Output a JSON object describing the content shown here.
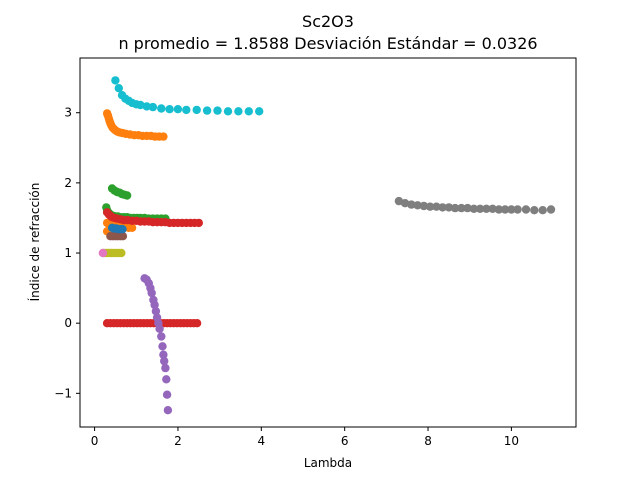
{
  "chart_data": {
    "type": "scatter",
    "title": "Sc2O3",
    "subtitle": "n promedio = 1.8588  Desviación Estándar = 0.0326",
    "xlabel": "Lambda",
    "ylabel": "Índice de refracción",
    "xlim": [
      -0.35,
      11.55
    ],
    "ylim": [
      -1.48,
      3.78
    ],
    "xticks": [
      0,
      2,
      4,
      6,
      8,
      10
    ],
    "yticks": [
      -1,
      0,
      1,
      2,
      3
    ],
    "ytick_labels": [
      "−1",
      "0",
      "1",
      "2",
      "3"
    ],
    "grid": false,
    "series": [
      {
        "color": "#17becf",
        "points": [
          [
            0.5,
            3.46
          ],
          [
            0.58,
            3.35
          ],
          [
            0.66,
            3.25
          ],
          [
            0.74,
            3.2
          ],
          [
            0.82,
            3.17
          ],
          [
            0.9,
            3.14
          ],
          [
            1.0,
            3.12
          ],
          [
            1.1,
            3.11
          ],
          [
            1.25,
            3.09
          ],
          [
            1.4,
            3.08
          ],
          [
            1.6,
            3.06
          ],
          [
            1.8,
            3.05
          ],
          [
            2.0,
            3.05
          ],
          [
            2.2,
            3.04
          ],
          [
            2.45,
            3.04
          ],
          [
            2.7,
            3.03
          ],
          [
            2.95,
            3.03
          ],
          [
            3.2,
            3.02
          ],
          [
            3.45,
            3.02
          ],
          [
            3.7,
            3.02
          ],
          [
            3.95,
            3.02
          ]
        ]
      },
      {
        "color": "#ff7f0e",
        "points": [
          [
            0.3,
            2.99
          ],
          [
            0.32,
            2.96
          ],
          [
            0.34,
            2.92
          ],
          [
            0.36,
            2.88
          ],
          [
            0.38,
            2.85
          ],
          [
            0.4,
            2.82
          ],
          [
            0.43,
            2.79
          ],
          [
            0.46,
            2.77
          ],
          [
            0.5,
            2.75
          ],
          [
            0.55,
            2.73
          ],
          [
            0.6,
            2.72
          ],
          [
            0.67,
            2.71
          ],
          [
            0.75,
            2.7
          ],
          [
            0.85,
            2.69
          ],
          [
            0.95,
            2.68
          ],
          [
            1.05,
            2.68
          ],
          [
            1.15,
            2.67
          ],
          [
            1.25,
            2.67
          ],
          [
            1.35,
            2.67
          ],
          [
            1.45,
            2.66
          ],
          [
            1.55,
            2.66
          ],
          [
            1.65,
            2.66
          ],
          [
            0.3,
            1.43
          ],
          [
            0.35,
            1.41
          ],
          [
            0.42,
            1.4
          ],
          [
            0.5,
            1.39
          ],
          [
            0.58,
            1.38
          ],
          [
            0.66,
            1.37
          ],
          [
            0.74,
            1.37
          ],
          [
            0.82,
            1.36
          ],
          [
            0.9,
            1.36
          ],
          [
            0.3,
            1.31
          ],
          [
            0.35,
            1.3
          ],
          [
            0.4,
            1.3
          ],
          [
            0.45,
            1.29
          ]
        ]
      },
      {
        "color": "#2ca02c",
        "points": [
          [
            0.42,
            1.92
          ],
          [
            0.48,
            1.89
          ],
          [
            0.54,
            1.87
          ],
          [
            0.6,
            1.86
          ],
          [
            0.66,
            1.84
          ],
          [
            0.72,
            1.83
          ],
          [
            0.78,
            1.82
          ],
          [
            0.28,
            1.65
          ],
          [
            0.3,
            1.61
          ],
          [
            0.33,
            1.58
          ],
          [
            0.36,
            1.56
          ],
          [
            0.4,
            1.54
          ],
          [
            0.45,
            1.53
          ],
          [
            0.5,
            1.52
          ],
          [
            0.56,
            1.52
          ],
          [
            0.62,
            1.51
          ],
          [
            0.7,
            1.51
          ],
          [
            0.78,
            1.51
          ],
          [
            0.86,
            1.5
          ],
          [
            0.94,
            1.5
          ],
          [
            1.02,
            1.5
          ],
          [
            1.1,
            1.5
          ],
          [
            1.2,
            1.5
          ],
          [
            1.3,
            1.49
          ],
          [
            1.4,
            1.49
          ],
          [
            1.5,
            1.49
          ],
          [
            1.6,
            1.49
          ],
          [
            1.7,
            1.49
          ]
        ]
      },
      {
        "color": "#d62728",
        "points": [
          [
            0.3,
            1.58
          ],
          [
            0.34,
            1.55
          ],
          [
            0.38,
            1.53
          ],
          [
            0.42,
            1.51
          ],
          [
            0.48,
            1.5
          ],
          [
            0.54,
            1.49
          ],
          [
            0.62,
            1.48
          ],
          [
            0.7,
            1.47
          ],
          [
            0.8,
            1.47
          ],
          [
            0.9,
            1.46
          ],
          [
            1.0,
            1.46
          ],
          [
            1.1,
            1.45
          ],
          [
            1.2,
            1.45
          ],
          [
            1.3,
            1.45
          ],
          [
            1.4,
            1.44
          ],
          [
            1.5,
            1.44
          ],
          [
            1.6,
            1.44
          ],
          [
            1.7,
            1.44
          ],
          [
            1.8,
            1.43
          ],
          [
            1.9,
            1.43
          ],
          [
            2.0,
            1.43
          ],
          [
            2.1,
            1.43
          ],
          [
            2.2,
            1.43
          ],
          [
            2.3,
            1.43
          ],
          [
            2.4,
            1.43
          ],
          [
            2.5,
            1.43
          ],
          [
            0.3,
            0.0
          ],
          [
            0.38,
            0.0
          ],
          [
            0.46,
            0.0
          ],
          [
            0.54,
            0.0
          ],
          [
            0.62,
            0.0
          ],
          [
            0.7,
            0.0
          ],
          [
            0.78,
            0.0
          ],
          [
            0.86,
            0.0
          ],
          [
            0.94,
            0.0
          ],
          [
            1.02,
            0.0
          ],
          [
            1.1,
            0.0
          ],
          [
            1.18,
            0.0
          ],
          [
            1.26,
            0.0
          ],
          [
            1.34,
            0.0
          ],
          [
            1.42,
            0.0
          ],
          [
            1.5,
            0.0
          ],
          [
            1.58,
            0.0
          ],
          [
            1.66,
            0.0
          ],
          [
            1.74,
            0.0
          ],
          [
            1.82,
            0.0
          ],
          [
            1.9,
            0.0
          ],
          [
            1.98,
            0.0
          ],
          [
            2.06,
            0.0
          ],
          [
            2.14,
            0.0
          ],
          [
            2.22,
            0.0
          ],
          [
            2.3,
            0.0
          ],
          [
            2.38,
            0.0
          ],
          [
            2.46,
            0.0
          ]
        ]
      },
      {
        "color": "#8c564b",
        "points": [
          [
            0.38,
            1.24
          ],
          [
            0.44,
            1.24
          ],
          [
            0.5,
            1.24
          ],
          [
            0.56,
            1.24
          ],
          [
            0.62,
            1.24
          ],
          [
            0.68,
            1.24
          ]
        ]
      },
      {
        "color": "#1f77b4",
        "points": [
          [
            0.42,
            1.36
          ],
          [
            0.47,
            1.35
          ],
          [
            0.52,
            1.35
          ],
          [
            0.57,
            1.34
          ],
          [
            0.62,
            1.34
          ],
          [
            0.67,
            1.34
          ]
        ]
      },
      {
        "color": "#bcbd22",
        "points": [
          [
            0.22,
            1.0
          ],
          [
            0.28,
            1.0
          ],
          [
            0.34,
            1.0
          ],
          [
            0.4,
            1.0
          ],
          [
            0.46,
            1.0
          ],
          [
            0.52,
            1.0
          ],
          [
            0.58,
            1.0
          ],
          [
            0.64,
            1.0
          ]
        ]
      },
      {
        "color": "#e377c2",
        "points": [
          [
            0.2,
            1.0
          ]
        ]
      },
      {
        "color": "#9467bd",
        "points": [
          [
            1.2,
            0.64
          ],
          [
            1.25,
            0.62
          ],
          [
            1.3,
            0.57
          ],
          [
            1.34,
            0.5
          ],
          [
            1.37,
            0.43
          ],
          [
            1.41,
            0.33
          ],
          [
            1.44,
            0.26
          ],
          [
            1.47,
            0.17
          ],
          [
            1.5,
            0.08
          ],
          [
            1.53,
            0.0
          ],
          [
            1.56,
            -0.08
          ],
          [
            1.6,
            -0.19
          ],
          [
            1.63,
            -0.33
          ],
          [
            1.65,
            -0.45
          ],
          [
            1.67,
            -0.54
          ],
          [
            1.7,
            -0.64
          ],
          [
            1.72,
            -0.8
          ],
          [
            1.74,
            -1.02
          ],
          [
            1.76,
            -1.24
          ]
        ]
      },
      {
        "color": "#7f7f7f",
        "points": [
          [
            7.3,
            1.74
          ],
          [
            7.45,
            1.71
          ],
          [
            7.6,
            1.69
          ],
          [
            7.75,
            1.68
          ],
          [
            7.9,
            1.67
          ],
          [
            8.05,
            1.66
          ],
          [
            8.2,
            1.66
          ],
          [
            8.35,
            1.65
          ],
          [
            8.5,
            1.65
          ],
          [
            8.65,
            1.64
          ],
          [
            8.8,
            1.64
          ],
          [
            8.95,
            1.64
          ],
          [
            9.1,
            1.63
          ],
          [
            9.25,
            1.63
          ],
          [
            9.4,
            1.63
          ],
          [
            9.55,
            1.63
          ],
          [
            9.7,
            1.62
          ],
          [
            9.85,
            1.62
          ],
          [
            10.0,
            1.62
          ],
          [
            10.15,
            1.62
          ],
          [
            10.35,
            1.62
          ],
          [
            10.55,
            1.61
          ],
          [
            10.75,
            1.61
          ],
          [
            10.95,
            1.62
          ]
        ]
      }
    ]
  }
}
